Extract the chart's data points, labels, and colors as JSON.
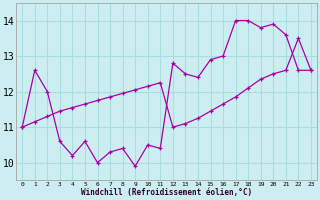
{
  "background_color": "#cceef0",
  "grid_color": "#aadddf",
  "line_color": "#aa00aa",
  "xlabel": "Windchill (Refroidissement éolien,°C)",
  "xlim": [
    -0.5,
    23.5
  ],
  "ylim": [
    9.5,
    14.5
  ],
  "yticks": [
    10,
    11,
    12,
    13,
    14
  ],
  "xticks": [
    0,
    1,
    2,
    3,
    4,
    5,
    6,
    7,
    8,
    9,
    10,
    11,
    12,
    13,
    14,
    15,
    16,
    17,
    18,
    19,
    20,
    21,
    22,
    23
  ],
  "curve1_x": [
    0,
    1,
    2,
    3,
    4,
    5,
    6,
    7,
    8,
    9,
    10,
    11,
    12,
    13,
    14,
    15,
    16,
    17,
    18,
    19,
    20,
    21,
    22,
    23
  ],
  "curve1_y": [
    11.0,
    12.6,
    12.0,
    10.6,
    10.2,
    10.6,
    10.0,
    10.3,
    10.4,
    9.9,
    10.5,
    10.4,
    12.8,
    12.5,
    12.4,
    12.9,
    13.0,
    14.0,
    14.0,
    13.8,
    13.9,
    13.6,
    12.6,
    12.6
  ],
  "curve2_x": [
    0,
    1,
    2,
    3,
    4,
    5,
    6,
    7,
    8,
    9,
    10,
    11,
    12,
    13,
    14,
    15,
    16,
    17,
    18,
    19,
    20,
    21,
    22,
    23
  ],
  "curve2_y": [
    11.0,
    11.15,
    11.3,
    11.45,
    11.55,
    11.65,
    11.75,
    11.85,
    11.95,
    12.05,
    12.15,
    12.25,
    11.0,
    11.1,
    11.25,
    11.45,
    11.65,
    11.85,
    12.1,
    12.35,
    12.5,
    12.6,
    13.5,
    12.6
  ]
}
